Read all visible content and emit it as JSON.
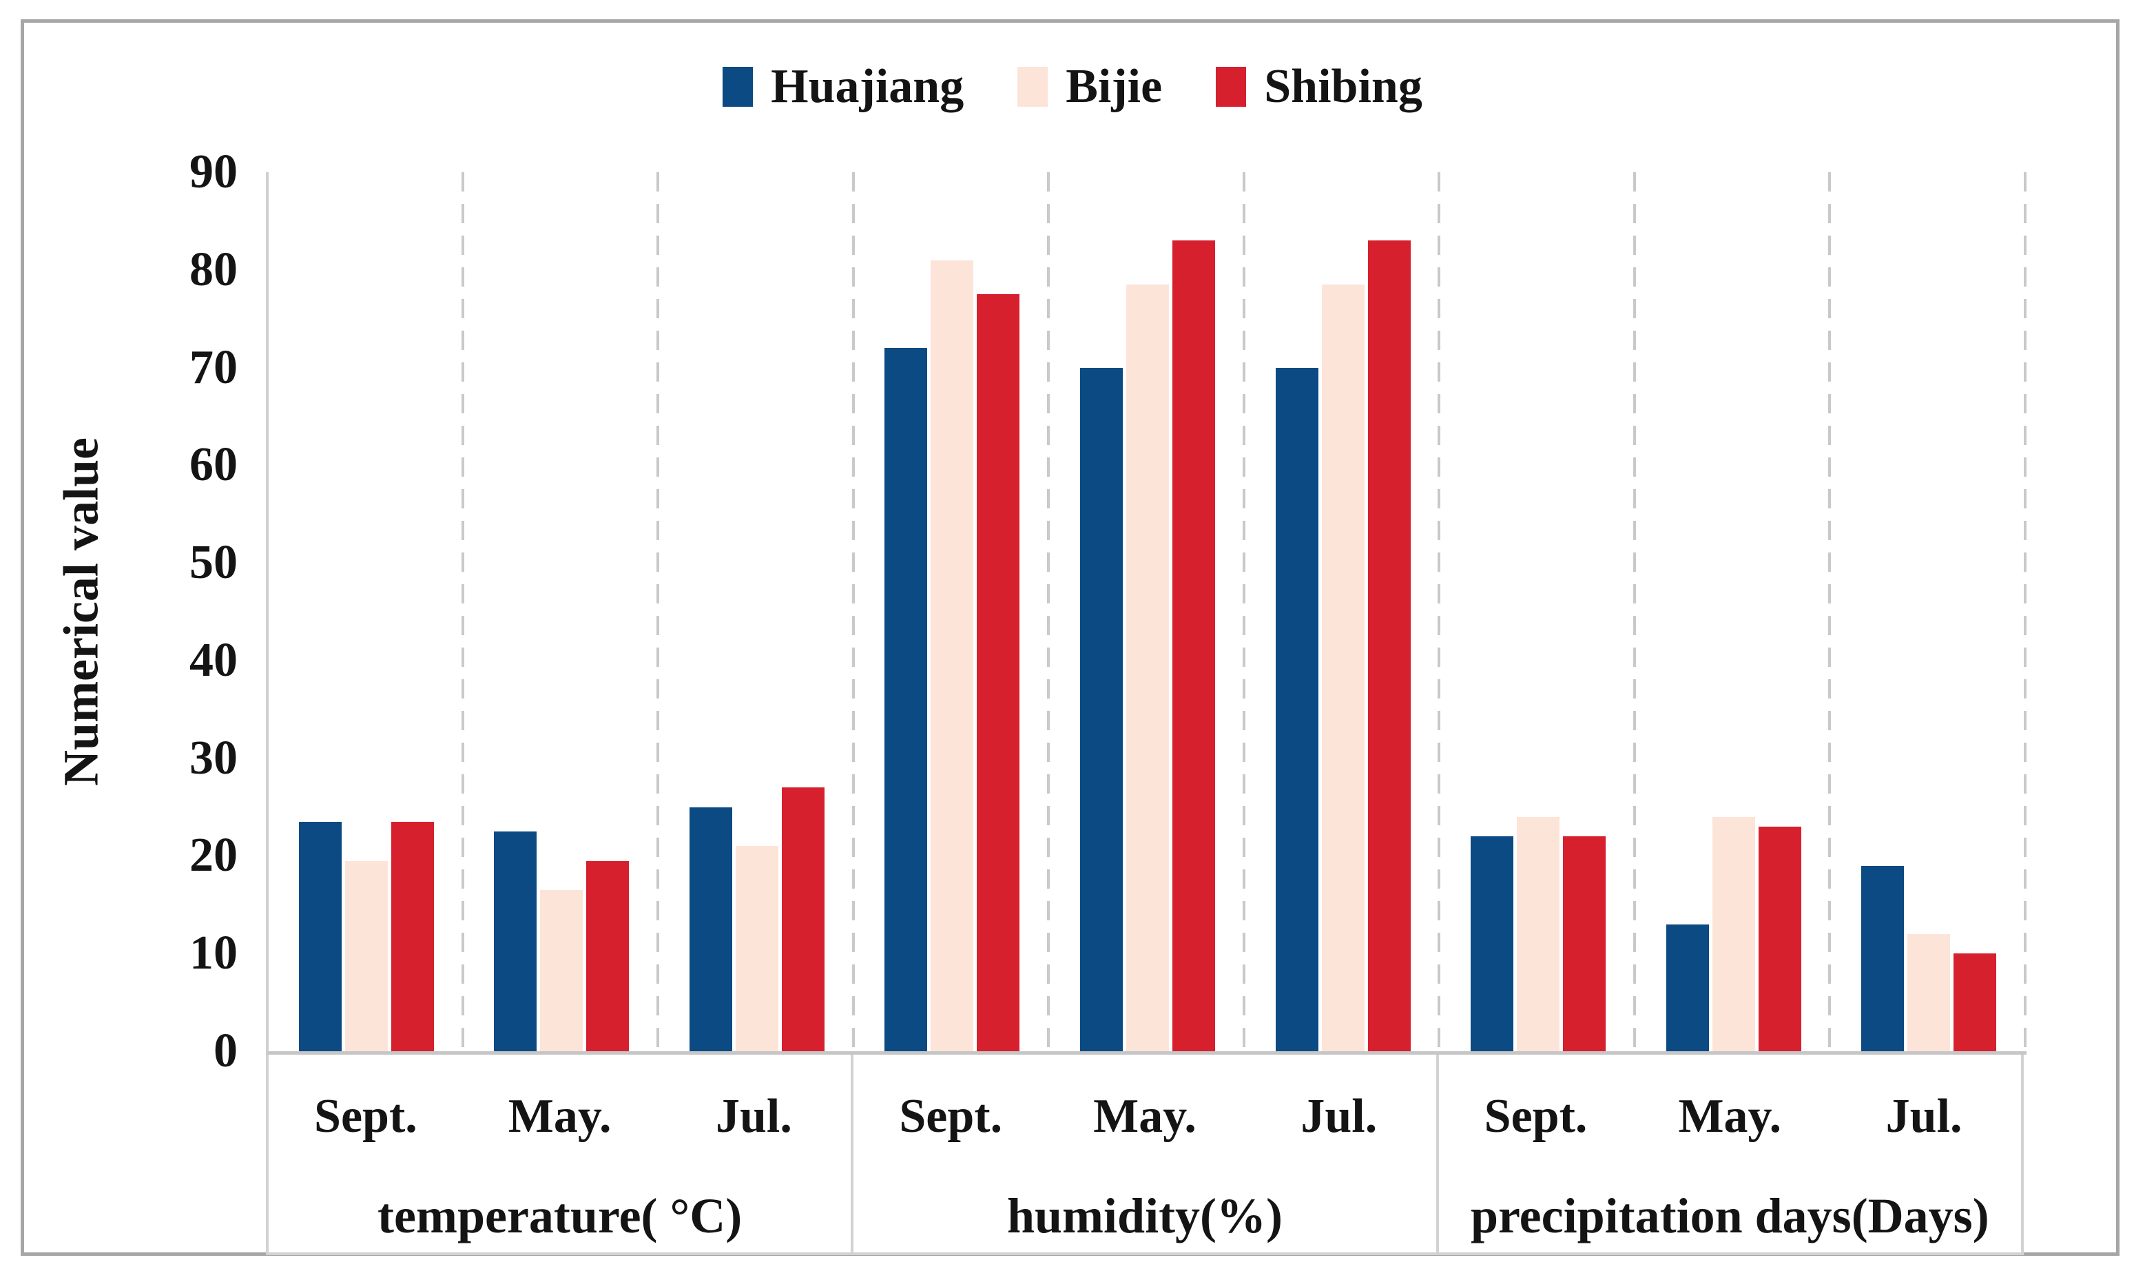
{
  "legend": {
    "items": [
      {
        "label": "Huajiang",
        "color": "#0b4a82"
      },
      {
        "label": "Bijie",
        "color": "#fce5d8"
      },
      {
        "label": "Shibing",
        "color": "#d6202e"
      }
    ]
  },
  "chart_data": {
    "type": "bar",
    "title": "",
    "ylabel": "Numerical value",
    "ylim": [
      0,
      90
    ],
    "yticks": [
      0,
      10,
      20,
      30,
      40,
      50,
      60,
      70,
      80,
      90
    ],
    "grid": "dashed vertical separators between category cells",
    "legend_position": "top center",
    "groups": [
      {
        "label": "temperature( °C)",
        "categories": [
          "Sept.",
          "May.",
          "Jul."
        ]
      },
      {
        "label": "humidity(%)",
        "categories": [
          "Sept.",
          "May.",
          "Jul."
        ]
      },
      {
        "label": "precipitation days(Days)",
        "categories": [
          "Sept.",
          "May.",
          "Jul."
        ]
      }
    ],
    "series": [
      {
        "name": "Huajiang",
        "color": "#0b4a82",
        "values_by_group": {
          "temperature": [
            23.5,
            22.5,
            25
          ],
          "humidity": [
            72,
            70,
            70
          ],
          "precipitation_days": [
            22,
            13,
            19
          ]
        },
        "values": [
          23.5,
          22.5,
          25,
          72,
          70,
          70,
          22,
          13,
          19
        ]
      },
      {
        "name": "Bijie",
        "color": "#fce5d8",
        "values_by_group": {
          "temperature": [
            19.5,
            16.5,
            21
          ],
          "humidity": [
            81,
            78.5,
            78.5
          ],
          "precipitation_days": [
            24,
            24,
            12
          ]
        },
        "values": [
          19.5,
          16.5,
          21,
          81,
          78.5,
          78.5,
          24,
          24,
          12
        ]
      },
      {
        "name": "Shibing",
        "color": "#d6202e",
        "values_by_group": {
          "temperature": [
            23.5,
            19.5,
            27
          ],
          "humidity": [
            77.5,
            83,
            83
          ],
          "precipitation_days": [
            22,
            23,
            10
          ]
        },
        "values": [
          23.5,
          19.5,
          27,
          77.5,
          83,
          83,
          22,
          23,
          10
        ]
      }
    ]
  }
}
